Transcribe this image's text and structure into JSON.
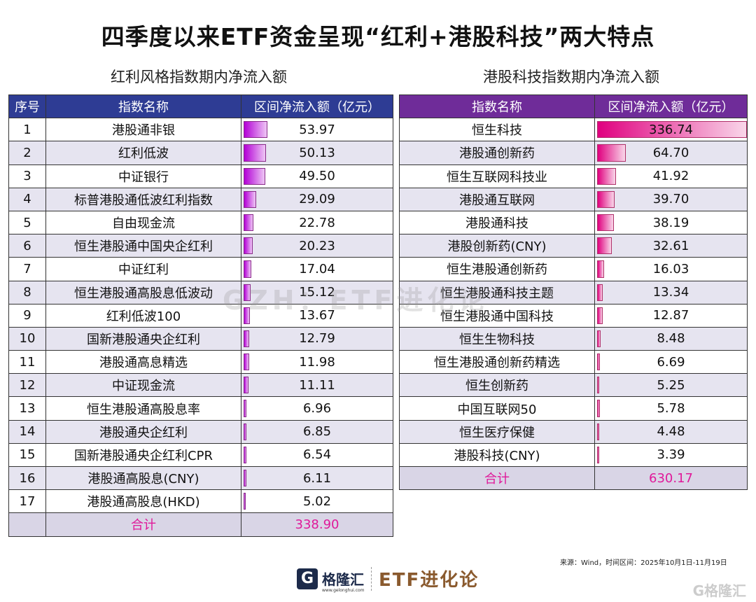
{
  "title": "四季度以来ETF资金呈现“红利+港股科技”两大特点",
  "chart_data": [
    {
      "type": "table",
      "title": "红利风格指数期内净流入额",
      "columns": [
        "序号",
        "指数名称",
        "区间净流入额（亿元）"
      ],
      "rows": [
        {
          "idx": "1",
          "name": "港股通非银",
          "value": 53.97
        },
        {
          "idx": "2",
          "name": "红利低波",
          "value": 50.13
        },
        {
          "idx": "3",
          "name": "中证银行",
          "value": 49.5
        },
        {
          "idx": "4",
          "name": "标普港股通低波红利指数",
          "value": 29.09
        },
        {
          "idx": "5",
          "name": "自由现金流",
          "value": 22.78
        },
        {
          "idx": "6",
          "name": "恒生港股通中国央企红利",
          "value": 20.23
        },
        {
          "idx": "7",
          "name": "中证红利",
          "value": 17.04
        },
        {
          "idx": "8",
          "name": "恒生港股通高股息低波动",
          "value": 15.12
        },
        {
          "idx": "9",
          "name": "红利低波100",
          "value": 13.67
        },
        {
          "idx": "10",
          "name": "国新港股通央企红利",
          "value": 12.79
        },
        {
          "idx": "11",
          "name": "港股通高息精选",
          "value": 11.98
        },
        {
          "idx": "12",
          "name": "中证现金流",
          "value": 11.11
        },
        {
          "idx": "13",
          "name": "恒生港股通高股息率",
          "value": 6.96
        },
        {
          "idx": "14",
          "name": "港股通央企红利",
          "value": 6.85
        },
        {
          "idx": "15",
          "name": "国新港股通央企红利CPR",
          "value": 6.54
        },
        {
          "idx": "16",
          "name": "港股通高股息(CNY)",
          "value": 6.11
        },
        {
          "idx": "17",
          "name": "港股通高股息(HKD)",
          "value": 5.02
        }
      ],
      "total_label": "合计",
      "total": 338.9,
      "bar_color": "#b300d6"
    },
    {
      "type": "table",
      "title": "港股科技指数期内净流入额",
      "columns": [
        "指数名称",
        "区间净流入额（亿元）"
      ],
      "rows": [
        {
          "name": "恒生科技",
          "value": 336.74
        },
        {
          "name": "港股通创新药",
          "value": 64.7
        },
        {
          "name": "恒生互联网科技业",
          "value": 41.92
        },
        {
          "name": "港股通互联网",
          "value": 39.7
        },
        {
          "name": "港股通科技",
          "value": 38.19
        },
        {
          "name": "港股创新药(CNY)",
          "value": 32.61
        },
        {
          "name": "恒生港股通创新药",
          "value": 16.03
        },
        {
          "name": "恒生港股通科技主题",
          "value": 13.34
        },
        {
          "name": "恒生港股通中国科技",
          "value": 12.87
        },
        {
          "name": "恒生生物科技",
          "value": 8.48
        },
        {
          "name": "恒生港股通创新药精选",
          "value": 6.69
        },
        {
          "name": "恒生创新药",
          "value": 5.25
        },
        {
          "name": "中国互联网50",
          "value": 5.78
        },
        {
          "name": "恒生医疗保健",
          "value": 4.48
        },
        {
          "name": "港股科技(CNY)",
          "value": 3.39
        }
      ],
      "total_label": "合计",
      "total": 630.17,
      "bar_color": "#e0007f"
    }
  ],
  "watermark": "GZH：ETF进化论",
  "source": "来源：Wind，时间区间：2025年10月1日-11月19日",
  "logo": {
    "mark": "G",
    "name": "格隆汇",
    "url": "www.gelonghui.com",
    "brand": "ETF进化论"
  },
  "corner_logo": "G格隆汇"
}
